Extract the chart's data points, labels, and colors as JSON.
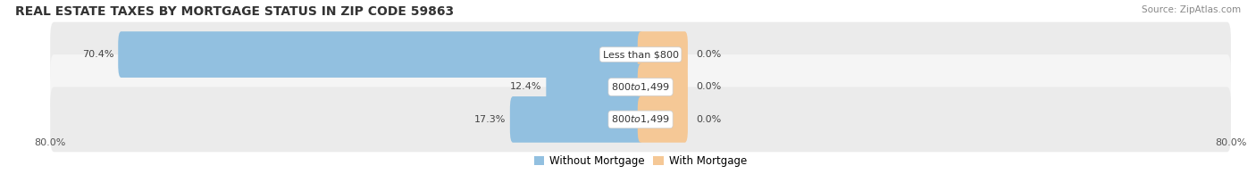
{
  "title": "REAL ESTATE TAXES BY MORTGAGE STATUS IN ZIP CODE 59863",
  "source": "Source: ZipAtlas.com",
  "rows": [
    {
      "without_mortgage_pct": 70.4,
      "with_mortgage_pct": 0.0,
      "label": "Less than $800",
      "without_mortgage_label": "70.4%",
      "with_mortgage_label": "0.0%"
    },
    {
      "without_mortgage_pct": 12.4,
      "with_mortgage_pct": 0.0,
      "label": "$800 to $1,499",
      "without_mortgage_label": "12.4%",
      "with_mortgage_label": "0.0%"
    },
    {
      "without_mortgage_pct": 17.3,
      "with_mortgage_pct": 0.0,
      "label": "$800 to $1,499",
      "without_mortgage_label": "17.3%",
      "with_mortgage_label": "0.0%"
    }
  ],
  "xlim_left": -80.0,
  "xlim_right": 80.0,
  "x_left_label": "80.0%",
  "x_right_label": "80.0%",
  "bar_color_without": "#92C0E0",
  "bar_color_with": "#F5C896",
  "bg_row_color": "#EBEBEB",
  "bg_row_color_alt": "#F5F5F5",
  "legend_without": "Without Mortgage",
  "legend_with": "With Mortgage",
  "title_fontsize": 10,
  "source_fontsize": 7.5,
  "bar_height": 0.62,
  "with_mortgage_bar_width": 6.0
}
